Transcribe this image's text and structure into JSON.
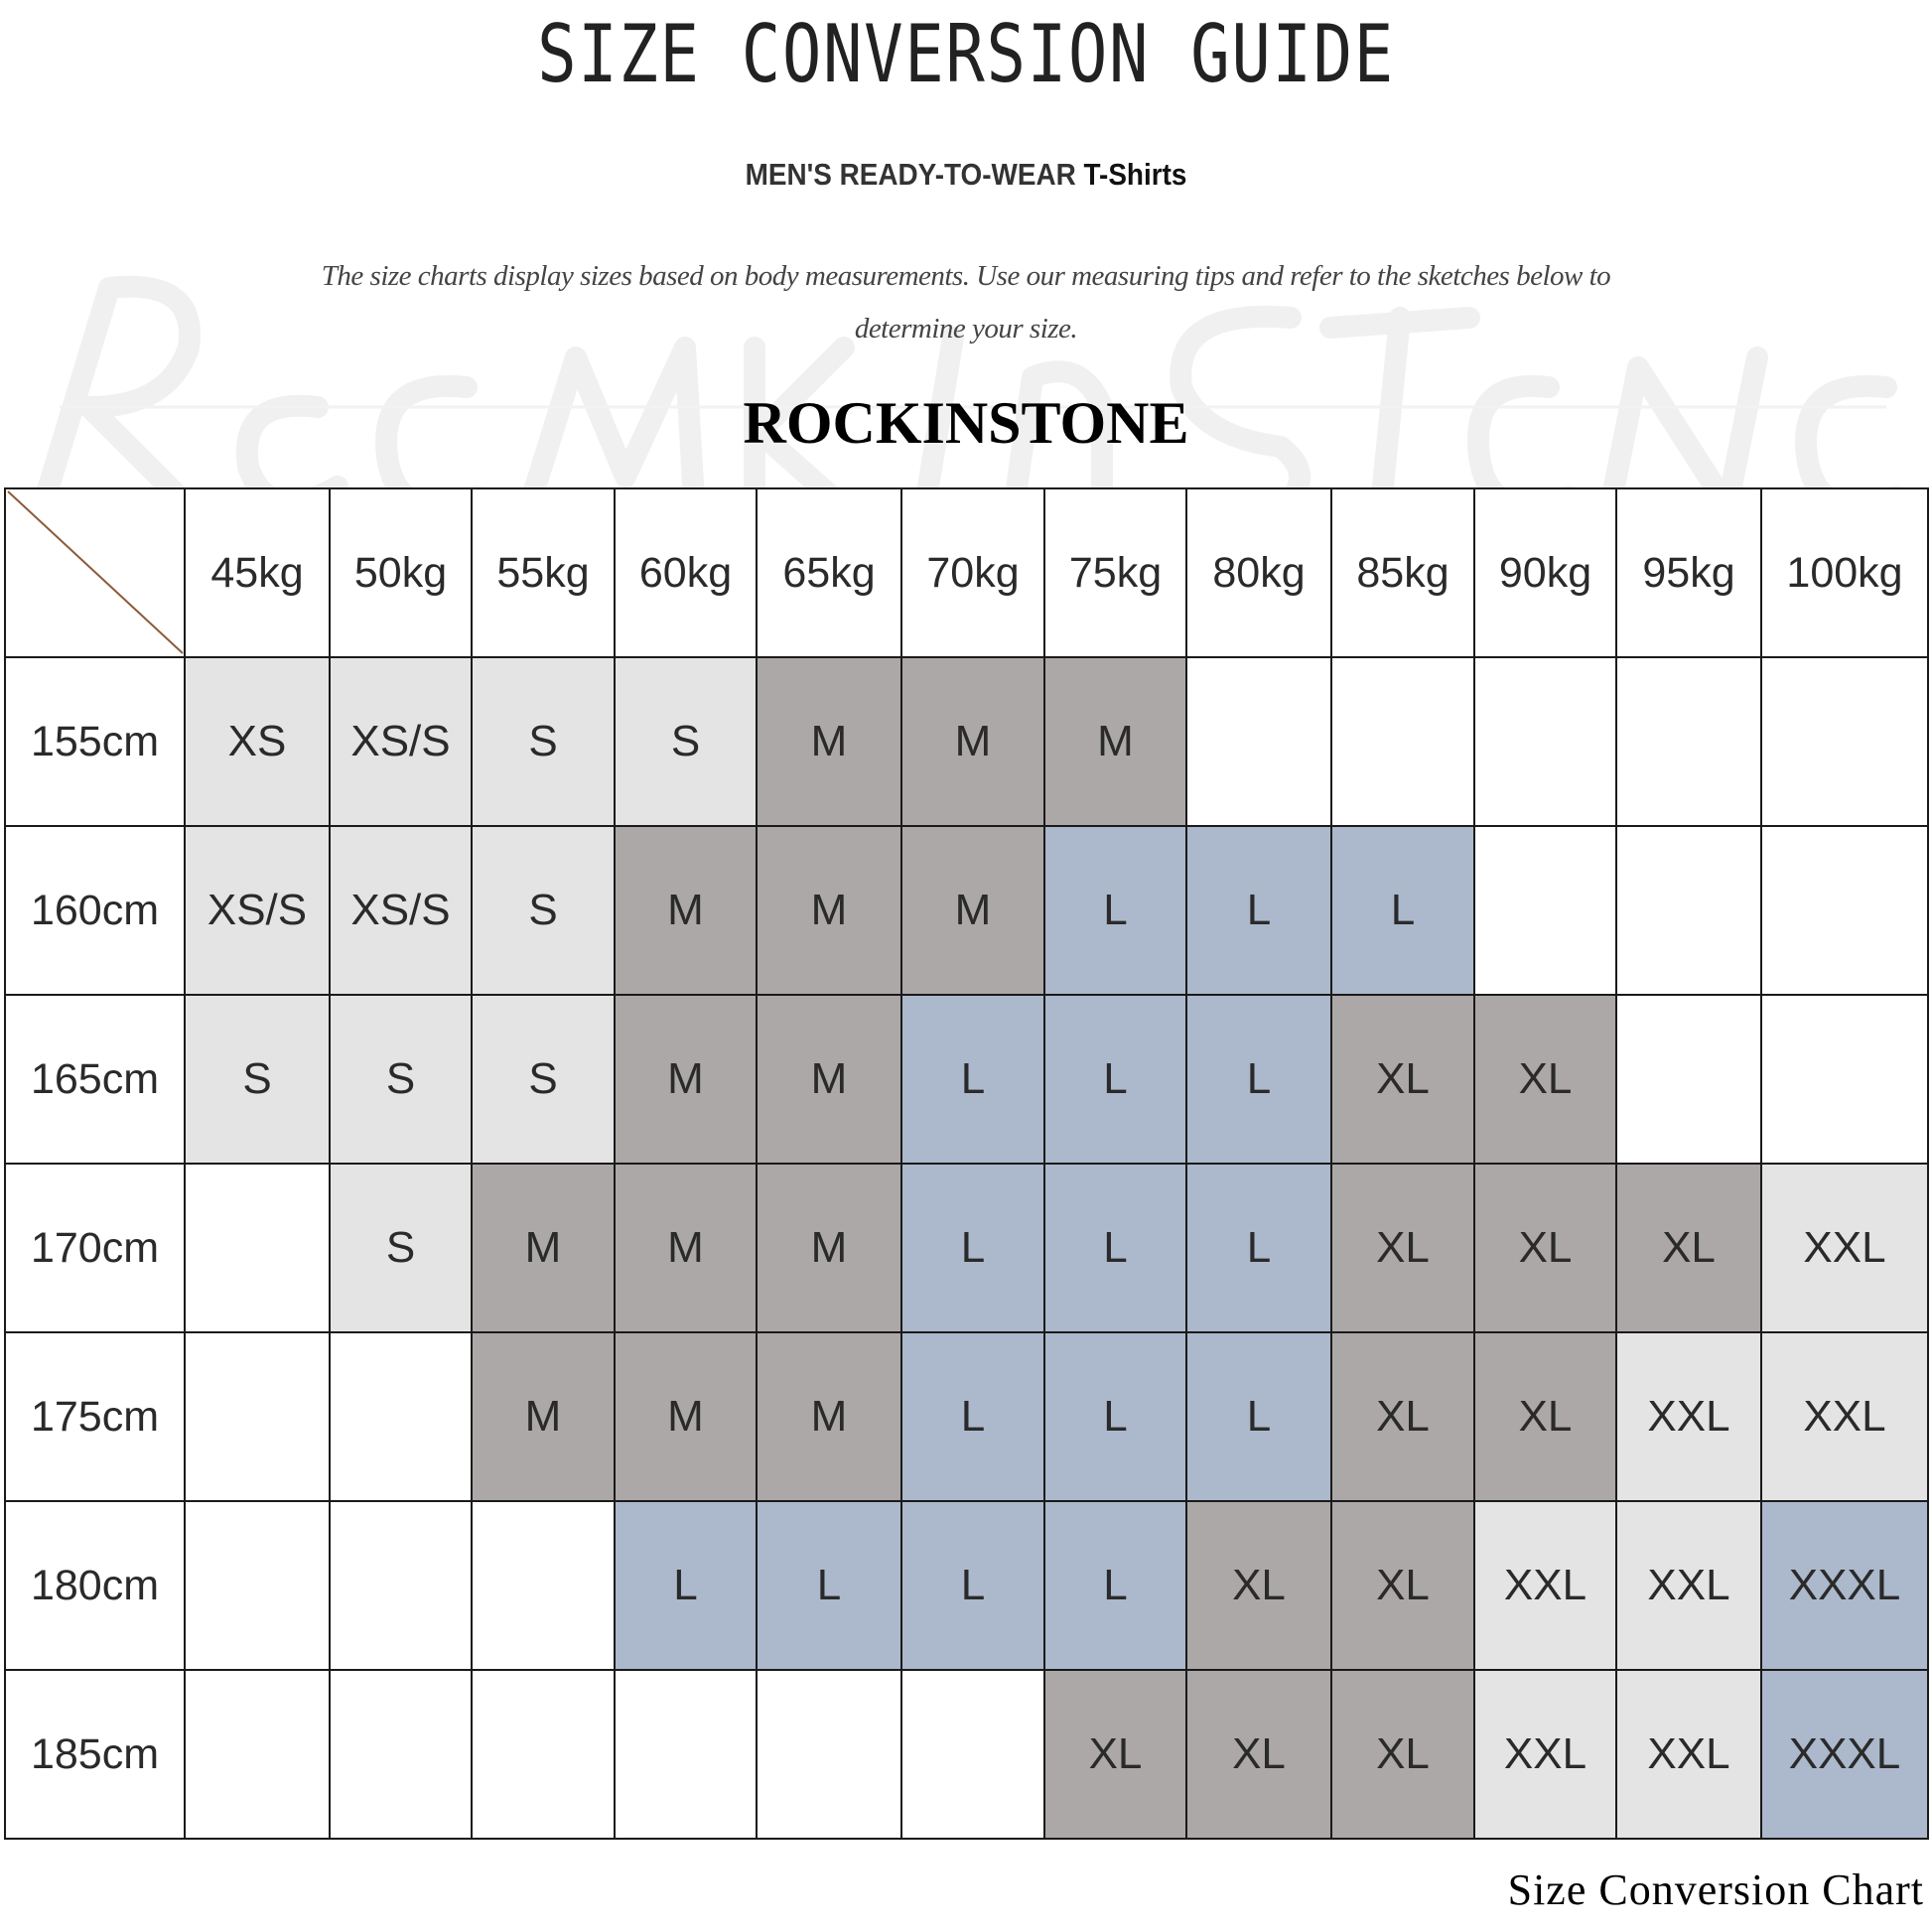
{
  "title": "SIZE CONVERSION GUIDE",
  "subtitle": {
    "main": "MEN'S READY-TO-WEAR",
    "product": "T-Shirts"
  },
  "description": "The size charts display sizes based on body measurements. Use our measuring tips and refer to the sketches below to determine your size.",
  "brand": "ROCKINSTONE",
  "watermark": "Rockinstone",
  "footer": "Size Conversion Chart",
  "colors": {
    "light": "#e4e4e4",
    "gray": "#aca8a7",
    "blue": "#acb8cb",
    "corner_line": "#8b5a3a"
  },
  "size_colors": {
    "XS": "light",
    "XS/S": "light",
    "S": "light",
    "M": "gray",
    "L": "blue",
    "XL": "gray",
    "XXL": "light",
    "XXXL": "blue"
  },
  "table": {
    "weights": [
      "45kg",
      "50kg",
      "55kg",
      "60kg",
      "65kg",
      "70kg",
      "75kg",
      "80kg",
      "85kg",
      "90kg",
      "95kg",
      "100kg"
    ],
    "rows": [
      {
        "height": "155cm",
        "sizes": [
          "XS",
          "XS/S",
          "S",
          "S",
          "M",
          "M",
          "M",
          "",
          "",
          "",
          "",
          ""
        ]
      },
      {
        "height": "160cm",
        "sizes": [
          "XS/S",
          "XS/S",
          "S",
          "M",
          "M",
          "M",
          "L",
          "L",
          "L",
          "",
          "",
          ""
        ]
      },
      {
        "height": "165cm",
        "sizes": [
          "S",
          "S",
          "S",
          "M",
          "M",
          "L",
          "L",
          "L",
          "XL",
          "XL",
          "",
          ""
        ]
      },
      {
        "height": "170cm",
        "sizes": [
          "",
          "S",
          "M",
          "M",
          "M",
          "L",
          "L",
          "L",
          "XL",
          "XL",
          "XL",
          "XXL"
        ]
      },
      {
        "height": "175cm",
        "sizes": [
          "",
          "",
          "M",
          "M",
          "M",
          "L",
          "L",
          "L",
          "XL",
          "XL",
          "XXL",
          "XXL"
        ]
      },
      {
        "height": "180cm",
        "sizes": [
          "",
          "",
          "",
          "L",
          "L",
          "L",
          "L",
          "XL",
          "XL",
          "XXL",
          "XXL",
          "XXXL"
        ]
      },
      {
        "height": "185cm",
        "sizes": [
          "",
          "",
          "",
          "",
          "",
          "",
          "XL",
          "XL",
          "XL",
          "XXL",
          "XXL",
          "XXXL"
        ]
      }
    ]
  }
}
